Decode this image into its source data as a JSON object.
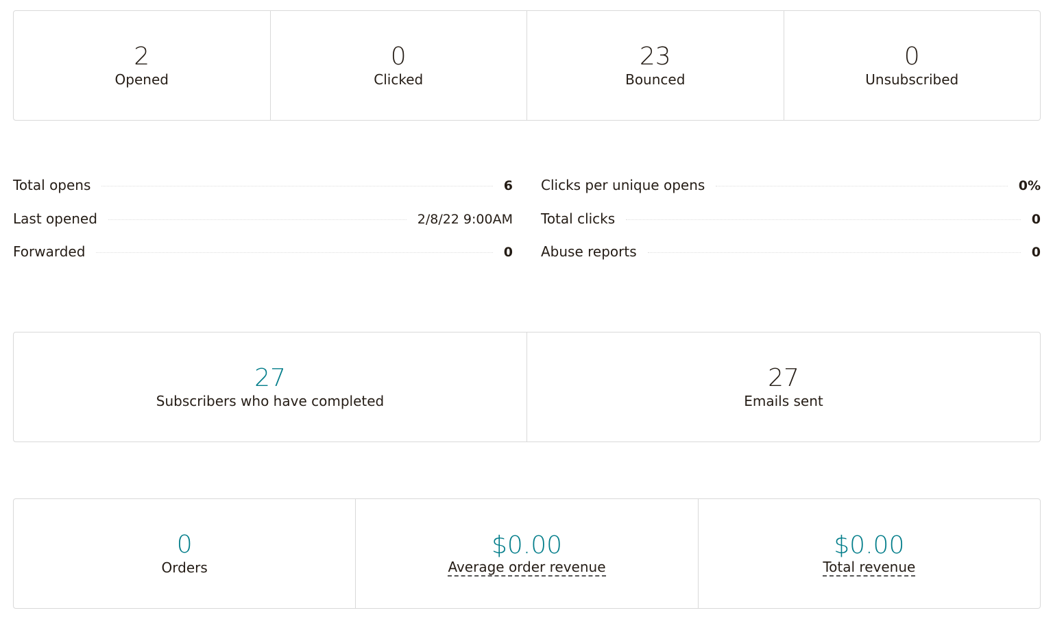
{
  "top_cards": [
    {
      "value": "2",
      "label": "Opened"
    },
    {
      "value": "0",
      "label": "Clicked"
    },
    {
      "value": "23",
      "label": "Bounced"
    },
    {
      "value": "0",
      "label": "Unsubscribed"
    }
  ],
  "stats_left": [
    {
      "label": "Total opens",
      "value": "6"
    },
    {
      "label": "Last opened",
      "value": "2/8/22 9:00AM"
    },
    {
      "label": "Forwarded",
      "value": "0"
    }
  ],
  "stats_right": [
    {
      "label": "Clicks per unique opens",
      "value": "0%"
    },
    {
      "label": "Total clicks",
      "value": "0"
    },
    {
      "label": "Abuse reports",
      "value": "0"
    }
  ],
  "completion_cards": [
    {
      "value": "27",
      "label": "Subscribers who have completed"
    },
    {
      "value": "27",
      "label": "Emails sent"
    }
  ],
  "revenue_cards": [
    {
      "value": "0",
      "label": "Orders"
    },
    {
      "value": "$0.00",
      "label": "Average order revenue"
    },
    {
      "value": "$0.00",
      "label": "Total revenue"
    }
  ],
  "colors": {
    "accent": "#007c89",
    "text": "#241c15",
    "border": "#d9d9d9"
  }
}
